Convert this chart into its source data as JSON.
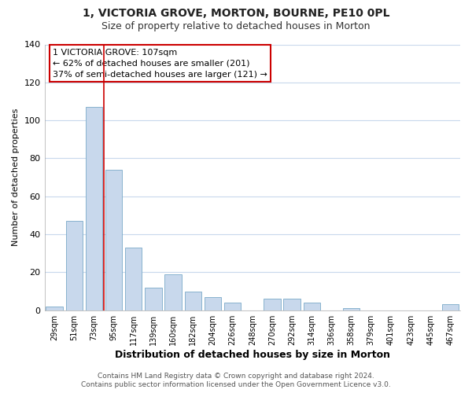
{
  "title": "1, VICTORIA GROVE, MORTON, BOURNE, PE10 0PL",
  "subtitle": "Size of property relative to detached houses in Morton",
  "xlabel": "Distribution of detached houses by size in Morton",
  "ylabel": "Number of detached properties",
  "bar_color": "#c8d8ec",
  "bar_edge_color": "#7aaac8",
  "categories": [
    "29sqm",
    "51sqm",
    "73sqm",
    "95sqm",
    "117sqm",
    "139sqm",
    "160sqm",
    "182sqm",
    "204sqm",
    "226sqm",
    "248sqm",
    "270sqm",
    "292sqm",
    "314sqm",
    "336sqm",
    "358sqm",
    "379sqm",
    "401sqm",
    "423sqm",
    "445sqm",
    "467sqm"
  ],
  "values": [
    2,
    47,
    107,
    74,
    33,
    12,
    19,
    10,
    7,
    4,
    0,
    6,
    6,
    4,
    0,
    1,
    0,
    0,
    0,
    0,
    3
  ],
  "ylim": [
    0,
    140
  ],
  "yticks": [
    0,
    20,
    40,
    60,
    80,
    100,
    120,
    140
  ],
  "annotation_title": "1 VICTORIA GROVE: 107sqm",
  "annotation_line1": "← 62% of detached houses are smaller (201)",
  "annotation_line2": "37% of semi-detached houses are larger (121) →",
  "annotation_box_color": "#ffffff",
  "annotation_box_edge": "#cc0000",
  "property_bar_index": 2,
  "vline_color": "#cc0000",
  "footnote1": "Contains HM Land Registry data © Crown copyright and database right 2024.",
  "footnote2": "Contains public sector information licensed under the Open Government Licence v3.0.",
  "background_color": "#ffffff",
  "plot_bg_color": "#ffffff",
  "grid_color": "#c8d8ec",
  "title_fontsize": 10,
  "subtitle_fontsize": 9
}
